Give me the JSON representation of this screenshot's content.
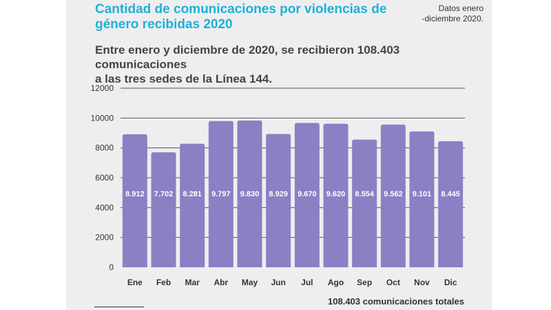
{
  "header": {
    "title_line1": "Cantidad de comunicaciones por violencias de",
    "title_line2": "género recibidas 2020",
    "note_line1": "Datos enero",
    "note_line2": "-diciembre 2020.",
    "subtitle_line1": "Entre enero y diciembre de 2020, se recibieron 108.403 comunicaciones",
    "subtitle_line2": "a las tres sedes de la Línea 144."
  },
  "footer": {
    "total_label": "108.403 comunicaciones totales"
  },
  "colors": {
    "bar": "#8b80c4",
    "title": "#1fb0d6",
    "grid": "#555555",
    "label": "#ffffff"
  },
  "chart_data": {
    "type": "bar",
    "categories": [
      "Ene",
      "Feb",
      "Mar",
      "Abr",
      "May",
      "Jun",
      "Jul",
      "Ago",
      "Sep",
      "Oct",
      "Nov",
      "Dic"
    ],
    "values": [
      8912,
      7702,
      8281,
      9797,
      9830,
      8929,
      9670,
      9620,
      8554,
      9562,
      9101,
      8445
    ],
    "data_labels": [
      "8.912",
      "7.702",
      "8.281",
      "9.797",
      "9.830",
      "8.929",
      "9.670",
      "9.620",
      "8.554",
      "9.562",
      "9.101",
      "8.445"
    ],
    "y_ticks": [
      0,
      2000,
      4000,
      6000,
      8000,
      10000,
      12000
    ],
    "ylim": [
      0,
      12000
    ],
    "grid": true
  }
}
